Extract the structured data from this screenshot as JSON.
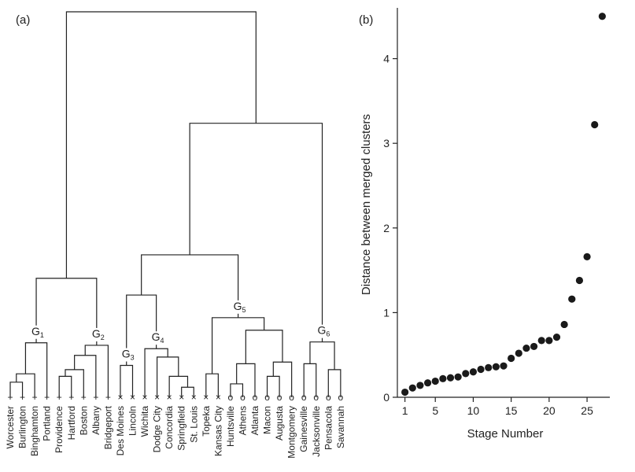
{
  "chart_data": [
    {
      "type": "dendrogram",
      "panel_label": "(a)",
      "leaves": [
        {
          "name": "Worcester",
          "marker": "+"
        },
        {
          "name": "Burlington",
          "marker": "+"
        },
        {
          "name": "Binghamton",
          "marker": "+"
        },
        {
          "name": "Portland",
          "marker": "+"
        },
        {
          "name": "Providence",
          "marker": "+"
        },
        {
          "name": "Hartford",
          "marker": "+"
        },
        {
          "name": "Boston",
          "marker": "+"
        },
        {
          "name": "Albany",
          "marker": "+"
        },
        {
          "name": "Bridgeport",
          "marker": "+"
        },
        {
          "name": "Des Moines",
          "marker": "×"
        },
        {
          "name": "Lincoln",
          "marker": "×"
        },
        {
          "name": "Wichita",
          "marker": "×"
        },
        {
          "name": "Dodge City",
          "marker": "×"
        },
        {
          "name": "Concordia",
          "marker": "×"
        },
        {
          "name": "Springfield",
          "marker": "×"
        },
        {
          "name": "St. Louis",
          "marker": "×"
        },
        {
          "name": "Topeka",
          "marker": "×"
        },
        {
          "name": "Kansas City",
          "marker": "×"
        },
        {
          "name": "Huntsville",
          "marker": "o"
        },
        {
          "name": "Athens",
          "marker": "o"
        },
        {
          "name": "Atlanta",
          "marker": "o"
        },
        {
          "name": "Macon",
          "marker": "o"
        },
        {
          "name": "Augusta",
          "marker": "o"
        },
        {
          "name": "Montgomery",
          "marker": "o"
        },
        {
          "name": "Gainesville",
          "marker": "o"
        },
        {
          "name": "Jacksonville",
          "marker": "o"
        },
        {
          "name": "Pensacola",
          "marker": "o"
        },
        {
          "name": "Savannah",
          "marker": "o"
        }
      ],
      "merges": [
        {
          "a": "L0",
          "b": "L1",
          "h": 0.18
        },
        {
          "a": "N0",
          "b": "L2",
          "h": 0.28
        },
        {
          "a": "N1",
          "b": "L3",
          "h": 0.65
        },
        {
          "a": "L4",
          "b": "L5",
          "h": 0.25
        },
        {
          "a": "N3",
          "b": "L6",
          "h": 0.33
        },
        {
          "a": "N4",
          "b": "L7",
          "h": 0.5
        },
        {
          "a": "N5",
          "b": "L8",
          "h": 0.62
        },
        {
          "a": "N2",
          "b": "N6",
          "h": 1.42
        },
        {
          "a": "L9",
          "b": "L10",
          "h": 0.38
        },
        {
          "a": "L14",
          "b": "L15",
          "h": 0.12
        },
        {
          "a": "L13",
          "b": "N9",
          "h": 0.25
        },
        {
          "a": "L12",
          "b": "N10",
          "h": 0.48
        },
        {
          "a": "L11",
          "b": "N11",
          "h": 0.58
        },
        {
          "a": "N8",
          "b": "N12",
          "h": 1.22
        },
        {
          "a": "L16",
          "b": "L17",
          "h": 0.28
        },
        {
          "a": "L18",
          "b": "L19",
          "h": 0.16
        },
        {
          "a": "N15",
          "b": "L20",
          "h": 0.4
        },
        {
          "a": "L21",
          "b": "L22",
          "h": 0.25
        },
        {
          "a": "N17",
          "b": "L23",
          "h": 0.42
        },
        {
          "a": "N16",
          "b": "N18",
          "h": 0.8
        },
        {
          "a": "N14",
          "b": "N19",
          "h": 0.95
        },
        {
          "a": "N13",
          "b": "N20",
          "h": 1.7
        },
        {
          "a": "L24",
          "b": "L25",
          "h": 0.4
        },
        {
          "a": "L26",
          "b": "L27",
          "h": 0.33
        },
        {
          "a": "N22",
          "b": "N23",
          "h": 0.66
        },
        {
          "a": "N21",
          "b": "N24",
          "h": 3.27
        },
        {
          "a": "N7",
          "b": "N25",
          "h": 4.6
        }
      ],
      "groups": [
        {
          "label": "G",
          "sub": "1",
          "node": "N2"
        },
        {
          "label": "G",
          "sub": "2",
          "node": "N6"
        },
        {
          "label": "G",
          "sub": "3",
          "node": "N8"
        },
        {
          "label": "G",
          "sub": "4",
          "node": "N12"
        },
        {
          "label": "G",
          "sub": "5",
          "node": "N20"
        },
        {
          "label": "G",
          "sub": "6",
          "node": "N24"
        }
      ],
      "ylim": [
        0,
        4.6
      ]
    },
    {
      "type": "scatter",
      "panel_label": "(b)",
      "xlabel": "Stage Number",
      "ylabel": "Distance between merged clusters",
      "xticks": [
        1,
        5,
        10,
        15,
        20,
        25
      ],
      "yticks": [
        0,
        1,
        2,
        3,
        4
      ],
      "xlim": [
        0,
        28
      ],
      "ylim": [
        0,
        4.6
      ],
      "x": [
        1,
        2,
        3,
        4,
        5,
        6,
        7,
        8,
        9,
        10,
        11,
        12,
        13,
        14,
        15,
        16,
        17,
        18,
        19,
        20,
        21,
        22,
        23,
        24,
        25,
        26,
        27
      ],
      "y": [
        0.06,
        0.11,
        0.14,
        0.17,
        0.19,
        0.22,
        0.23,
        0.24,
        0.28,
        0.3,
        0.33,
        0.35,
        0.36,
        0.37,
        0.46,
        0.52,
        0.58,
        0.6,
        0.67,
        0.67,
        0.71,
        0.86,
        1.16,
        1.38,
        1.66,
        3.22,
        4.5
      ]
    }
  ]
}
